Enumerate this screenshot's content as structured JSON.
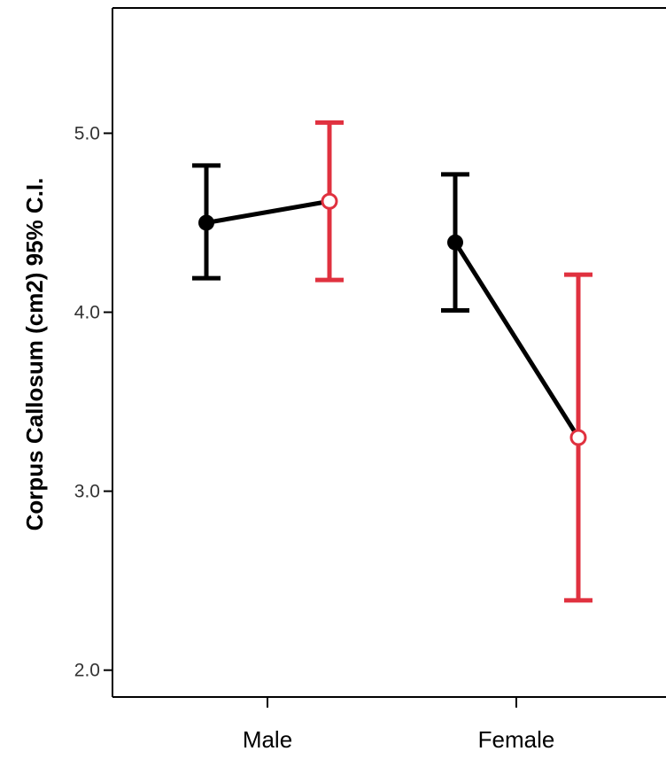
{
  "chart_data": {
    "type": "error-bar",
    "categories": [
      "Male",
      "Female"
    ],
    "ylabel": "Corpus Callosum (cm2) 95% C.I.",
    "yticks": [
      "2.0",
      "3.0",
      "4.0",
      "5.0"
    ],
    "ylim": [
      1.85,
      5.7
    ],
    "grid": false,
    "colors": {
      "black_series": "#000000",
      "red_series": "#e0313f"
    },
    "series": [
      {
        "color": "#000000",
        "points": [
          {
            "category": "Male",
            "mean": 4.5,
            "lower": 4.19,
            "upper": 4.82
          },
          {
            "category": "Female",
            "mean": 4.39,
            "lower": 4.01,
            "upper": 4.77
          }
        ]
      },
      {
        "color": "#e0313f",
        "points": [
          {
            "category": "Male",
            "mean": 4.62,
            "lower": 4.18,
            "upper": 5.06
          },
          {
            "category": "Female",
            "mean": 3.3,
            "lower": 2.39,
            "upper": 4.21
          }
        ]
      }
    ],
    "connectors": [
      {
        "category": "Male",
        "from": 4.5,
        "to": 4.62
      },
      {
        "category": "Female",
        "from": 4.39,
        "to": 3.3
      }
    ]
  }
}
